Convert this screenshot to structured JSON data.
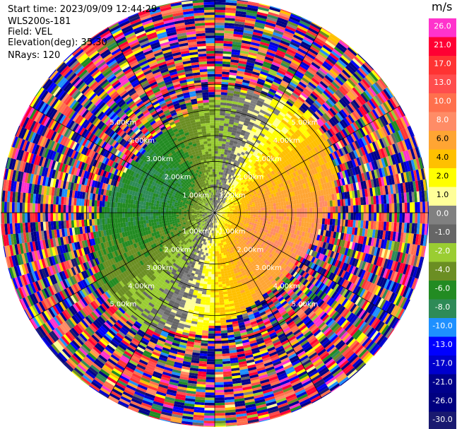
{
  "info": {
    "start_time": "Start time: 2023/09/09 12:44:29",
    "instrument": "WLS200s-181",
    "field": "Field: VEL",
    "elevation": "Elevation(deg): 35.30",
    "nrays": "NRays: 120"
  },
  "chart_data": {
    "type": "heatmap",
    "subtype": "polar-ppi",
    "field": "VEL",
    "units": "m/s",
    "nrays": 120,
    "range_rings": [
      {
        "label": "1.00km"
      },
      {
        "label": "2.00km"
      },
      {
        "label": "3.00km"
      },
      {
        "label": "4.00km"
      },
      {
        "label": "5.00km"
      }
    ],
    "max_range_km": 5.0,
    "valid_range_km": 2.6,
    "radials_deg": [
      0,
      30,
      60,
      90,
      120,
      150,
      180,
      210,
      240,
      270,
      300,
      330
    ],
    "velocity_pattern": {
      "toward_azimuth_deg": 290,
      "away_azimuth_deg": 110,
      "max_abs_speed_ms": 7.0
    },
    "colorbar": {
      "ticks": [
        "26.0",
        "21.0",
        "17.0",
        "13.0",
        "10.0",
        "8.0",
        "6.0",
        "4.0",
        "2.0",
        "1.0",
        "0.0",
        "-1.0",
        "-2.0",
        "-4.0",
        "-6.0",
        "-8.0",
        "-10.0",
        "-13.0",
        "-17.0",
        "-21.0",
        "-26.0",
        "-30.0"
      ],
      "colors": [
        "#ff33cc",
        "#ff0033",
        "#ff3333",
        "#ff4d4d",
        "#ff704d",
        "#ff8c66",
        "#ffa533",
        "#ffc000",
        "#ffff00",
        "#ffff99",
        "#808080",
        "#666666",
        "#9acd32",
        "#6b8e23",
        "#228b22",
        "#2e8b57",
        "#1e90ff",
        "#0000ff",
        "#0000cd",
        "#00008b",
        "#000080",
        "#191970"
      ]
    }
  }
}
